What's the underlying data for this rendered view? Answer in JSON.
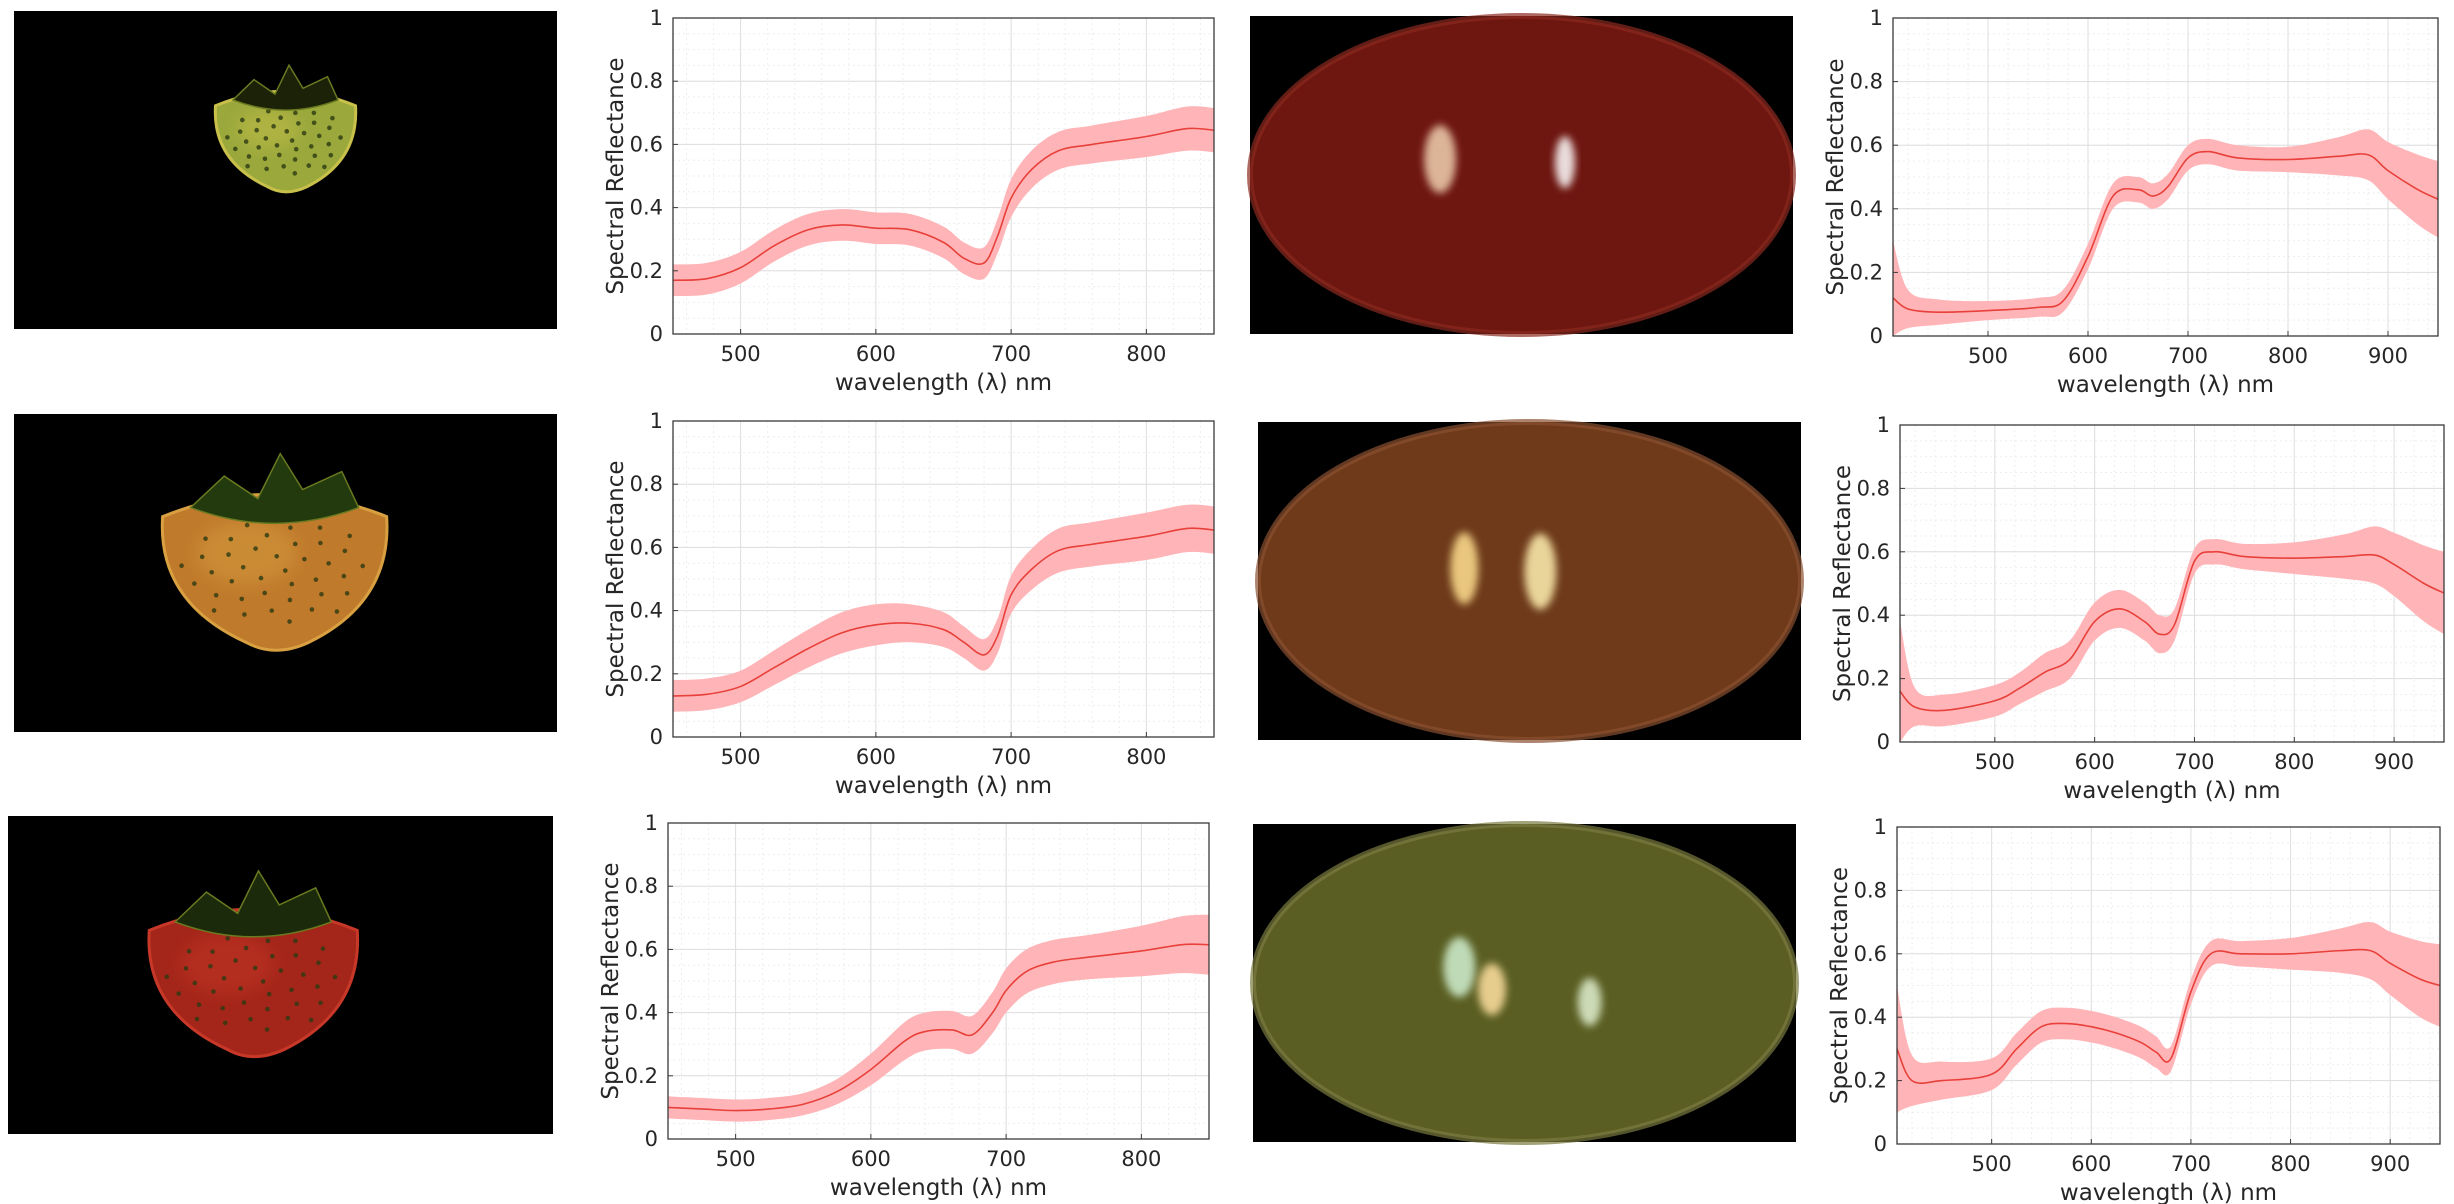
{
  "ylabel": "Spectral Reflectance",
  "xlabel": "wavelength (λ) nm",
  "images": [
    {
      "kind": "strawberry",
      "stage": "unripe-green",
      "colors": {
        "body": "#9aa83c",
        "edge": "#c8c04a",
        "calyx": "#1b2208"
      }
    },
    {
      "kind": "strawberry",
      "stage": "turning-orange",
      "colors": {
        "body": "#c07a2c",
        "edge": "#d8a040",
        "calyx": "#223a0e"
      }
    },
    {
      "kind": "strawberry",
      "stage": "ripe-red",
      "colors": {
        "body": "#a4261a",
        "edge": "#c83828",
        "calyx": "#1a2a0a"
      }
    },
    {
      "kind": "ellipse",
      "stage": "red",
      "colors": {
        "body": "#6e1610",
        "edge": "#8a2a20"
      }
    },
    {
      "kind": "ellipse",
      "stage": "brown",
      "colors": {
        "body": "#6e3a1a",
        "edge": "#8a5030"
      }
    },
    {
      "kind": "ellipse",
      "stage": "olive",
      "colors": {
        "body": "#5a5e22",
        "edge": "#7a7a40"
      }
    }
  ],
  "chart_data": [
    {
      "type": "line",
      "title": "",
      "xlabel": "wavelength (λ) nm",
      "ylabel": "Spectral Reflectance",
      "xlim": [
        450,
        850
      ],
      "ylim": [
        0,
        1
      ],
      "xticks": [
        500,
        600,
        700,
        800
      ],
      "yticks": [
        0,
        0.2,
        0.4,
        0.6,
        0.8,
        1
      ],
      "grid": true,
      "line_color": "#e8403a",
      "band_color": "#ffb5b8",
      "x": [
        450,
        475,
        500,
        525,
        550,
        575,
        600,
        625,
        650,
        665,
        680,
        690,
        700,
        715,
        735,
        760,
        800,
        830,
        850
      ],
      "y": [
        0.17,
        0.175,
        0.21,
        0.28,
        0.33,
        0.345,
        0.335,
        0.33,
        0.29,
        0.24,
        0.225,
        0.31,
        0.43,
        0.52,
        0.58,
        0.6,
        0.625,
        0.65,
        0.645
      ],
      "band": [
        0.05,
        0.05,
        0.05,
        0.05,
        0.05,
        0.05,
        0.05,
        0.05,
        0.05,
        0.05,
        0.05,
        0.055,
        0.06,
        0.06,
        0.06,
        0.06,
        0.065,
        0.07,
        0.07
      ]
    },
    {
      "type": "line",
      "title": "",
      "xlabel": "wavelength (λ) nm",
      "ylabel": "Spectral Reflectance",
      "xlim": [
        405,
        950
      ],
      "ylim": [
        0,
        1
      ],
      "xticks": [
        500,
        600,
        700,
        800,
        900
      ],
      "yticks": [
        0,
        0.2,
        0.4,
        0.6,
        0.8,
        1
      ],
      "grid": true,
      "line_color": "#e8403a",
      "band_color": "#ffb5b8",
      "x": [
        405,
        420,
        450,
        500,
        550,
        575,
        600,
        625,
        650,
        665,
        680,
        700,
        720,
        750,
        800,
        850,
        880,
        900,
        930,
        950
      ],
      "y": [
        0.12,
        0.085,
        0.075,
        0.08,
        0.09,
        0.11,
        0.25,
        0.44,
        0.46,
        0.44,
        0.47,
        0.56,
        0.58,
        0.56,
        0.555,
        0.565,
        0.57,
        0.52,
        0.46,
        0.43
      ],
      "band": [
        0.18,
        0.06,
        0.04,
        0.03,
        0.03,
        0.035,
        0.04,
        0.04,
        0.04,
        0.04,
        0.04,
        0.04,
        0.04,
        0.04,
        0.04,
        0.06,
        0.08,
        0.09,
        0.11,
        0.12
      ]
    },
    {
      "type": "line",
      "title": "",
      "xlabel": "wavelength (λ) nm",
      "ylabel": "Spectral Reflectance",
      "xlim": [
        450,
        850
      ],
      "ylim": [
        0,
        1
      ],
      "xticks": [
        500,
        600,
        700,
        800
      ],
      "yticks": [
        0,
        0.2,
        0.4,
        0.6,
        0.8,
        1
      ],
      "grid": true,
      "line_color": "#e8403a",
      "band_color": "#ffb5b8",
      "x": [
        450,
        475,
        500,
        525,
        550,
        575,
        600,
        625,
        650,
        665,
        680,
        690,
        700,
        715,
        735,
        760,
        800,
        830,
        850
      ],
      "y": [
        0.13,
        0.135,
        0.16,
        0.22,
        0.28,
        0.33,
        0.355,
        0.36,
        0.34,
        0.3,
        0.26,
        0.32,
        0.45,
        0.53,
        0.59,
        0.61,
        0.635,
        0.66,
        0.655
      ],
      "band": [
        0.05,
        0.05,
        0.05,
        0.055,
        0.06,
        0.065,
        0.065,
        0.06,
        0.055,
        0.05,
        0.05,
        0.055,
        0.06,
        0.065,
        0.07,
        0.07,
        0.075,
        0.075,
        0.075
      ]
    },
    {
      "type": "line",
      "title": "",
      "xlabel": "wavelength (λ) nm",
      "ylabel": "Spectral Reflectance",
      "xlim": [
        405,
        950
      ],
      "ylim": [
        0,
        1
      ],
      "xticks": [
        500,
        600,
        700,
        800,
        900
      ],
      "yticks": [
        0,
        0.2,
        0.4,
        0.6,
        0.8,
        1
      ],
      "grid": true,
      "line_color": "#e8403a",
      "band_color": "#ffb5b8",
      "x": [
        405,
        420,
        450,
        500,
        525,
        550,
        575,
        600,
        625,
        650,
        665,
        680,
        700,
        720,
        750,
        800,
        850,
        880,
        900,
        930,
        950
      ],
      "y": [
        0.16,
        0.11,
        0.1,
        0.13,
        0.17,
        0.22,
        0.26,
        0.38,
        0.42,
        0.38,
        0.34,
        0.37,
        0.57,
        0.6,
        0.585,
        0.58,
        0.585,
        0.59,
        0.56,
        0.5,
        0.47
      ],
      "band": [
        0.22,
        0.06,
        0.05,
        0.05,
        0.05,
        0.06,
        0.06,
        0.06,
        0.06,
        0.06,
        0.06,
        0.05,
        0.04,
        0.04,
        0.04,
        0.05,
        0.07,
        0.09,
        0.1,
        0.12,
        0.13
      ]
    },
    {
      "type": "line",
      "title": "",
      "xlabel": "wavelength (λ) nm",
      "ylabel": "Spectral Reflectance",
      "xlim": [
        450,
        850
      ],
      "ylim": [
        0,
        1
      ],
      "xticks": [
        500,
        600,
        700,
        800
      ],
      "yticks": [
        0,
        0.2,
        0.4,
        0.6,
        0.8,
        1
      ],
      "grid": true,
      "line_color": "#e8403a",
      "band_color": "#ffb5b8",
      "x": [
        450,
        475,
        500,
        525,
        550,
        575,
        600,
        625,
        640,
        660,
        675,
        690,
        700,
        715,
        735,
        760,
        800,
        830,
        850
      ],
      "y": [
        0.1,
        0.095,
        0.09,
        0.095,
        0.11,
        0.15,
        0.22,
        0.31,
        0.34,
        0.345,
        0.33,
        0.4,
        0.47,
        0.53,
        0.56,
        0.575,
        0.595,
        0.615,
        0.615
      ],
      "band": [
        0.035,
        0.035,
        0.035,
        0.035,
        0.035,
        0.04,
        0.05,
        0.06,
        0.06,
        0.06,
        0.06,
        0.065,
        0.07,
        0.07,
        0.07,
        0.07,
        0.08,
        0.09,
        0.095
      ]
    },
    {
      "type": "line",
      "title": "",
      "xlabel": "wavelength (λ) nm",
      "ylabel": "Spectral Reflectance",
      "xlim": [
        405,
        950
      ],
      "ylim": [
        0,
        1
      ],
      "xticks": [
        500,
        600,
        700,
        800,
        900
      ],
      "yticks": [
        0,
        0.2,
        0.4,
        0.6,
        0.8,
        1
      ],
      "grid": true,
      "line_color": "#e8403a",
      "band_color": "#ffb5b8",
      "x": [
        405,
        420,
        450,
        500,
        525,
        550,
        575,
        600,
        625,
        650,
        665,
        680,
        700,
        720,
        750,
        800,
        850,
        880,
        900,
        930,
        950
      ],
      "y": [
        0.3,
        0.2,
        0.2,
        0.22,
        0.3,
        0.37,
        0.38,
        0.37,
        0.35,
        0.32,
        0.29,
        0.27,
        0.48,
        0.6,
        0.6,
        0.6,
        0.61,
        0.61,
        0.57,
        0.52,
        0.5
      ],
      "band": [
        0.2,
        0.08,
        0.06,
        0.05,
        0.05,
        0.05,
        0.05,
        0.05,
        0.05,
        0.05,
        0.05,
        0.04,
        0.04,
        0.04,
        0.04,
        0.05,
        0.07,
        0.09,
        0.1,
        0.12,
        0.13
      ]
    }
  ]
}
